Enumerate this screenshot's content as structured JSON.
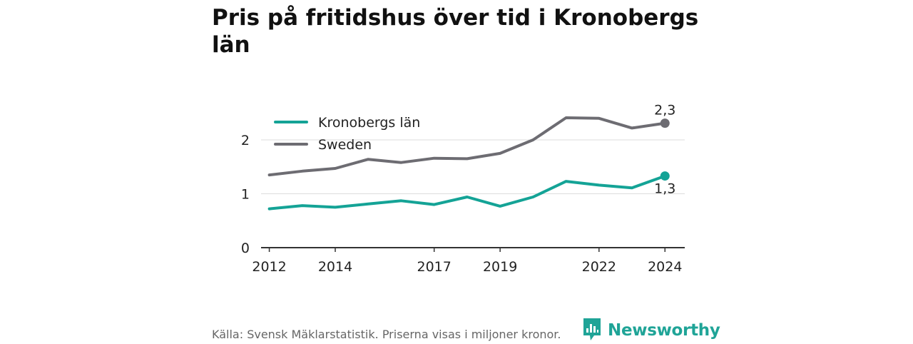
{
  "title": "Pris på fritidshus över tid i Kronobergs län",
  "footer": "Källa: Svensk Mäklarstatistik. Priserna visas i miljoner kronor.",
  "brand": "Newsworthy",
  "colors": {
    "kronoberg": "#14a396",
    "sweden": "#6d6c72",
    "grid": "#dddddd",
    "brand": "#1fa497"
  },
  "chart_data": {
    "type": "line",
    "x": [
      2012,
      2013,
      2014,
      2015,
      2016,
      2017,
      2018,
      2019,
      2020,
      2021,
      2022,
      2023,
      2024
    ],
    "xticks": [
      "2012",
      "2014",
      "2017",
      "2019",
      "2022",
      "2024"
    ],
    "yticks": [
      "0",
      "1",
      "2"
    ],
    "ylim": [
      0,
      2.6
    ],
    "xlim": [
      2011.75,
      2024.6
    ],
    "series": [
      {
        "name": "Kronobergs län",
        "color": "#14a396",
        "values": [
          0.72,
          0.78,
          0.75,
          0.81,
          0.87,
          0.8,
          0.94,
          0.77,
          0.94,
          1.23,
          1.16,
          1.11,
          1.33
        ],
        "end_label": "1,3"
      },
      {
        "name": "Sweden",
        "color": "#6d6c72",
        "values": [
          1.35,
          1.42,
          1.47,
          1.64,
          1.58,
          1.66,
          1.65,
          1.75,
          2.0,
          2.41,
          2.4,
          2.22,
          2.31
        ],
        "end_label": "2,3"
      }
    ],
    "legend": "top-left",
    "grid": true
  }
}
